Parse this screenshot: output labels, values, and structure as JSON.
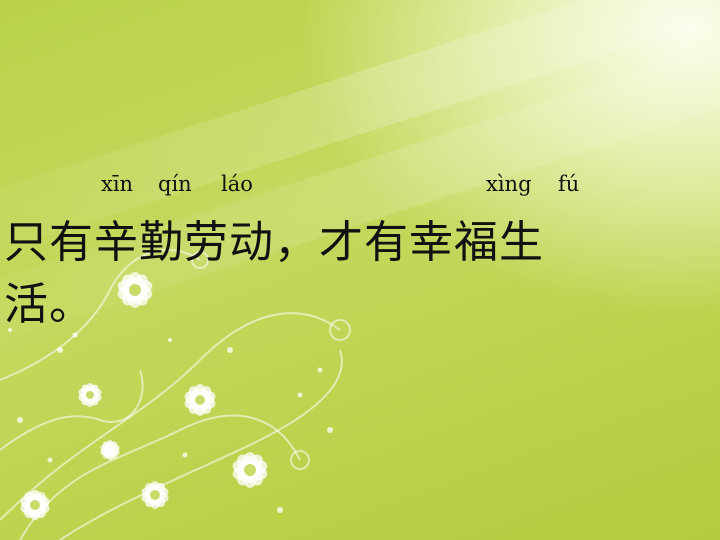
{
  "slide": {
    "pinyin": [
      "xīn",
      "qín",
      "láo",
      "xìng",
      "fú"
    ],
    "line1": "只有辛勤劳动，才有幸福生",
    "line2": "活。"
  }
}
